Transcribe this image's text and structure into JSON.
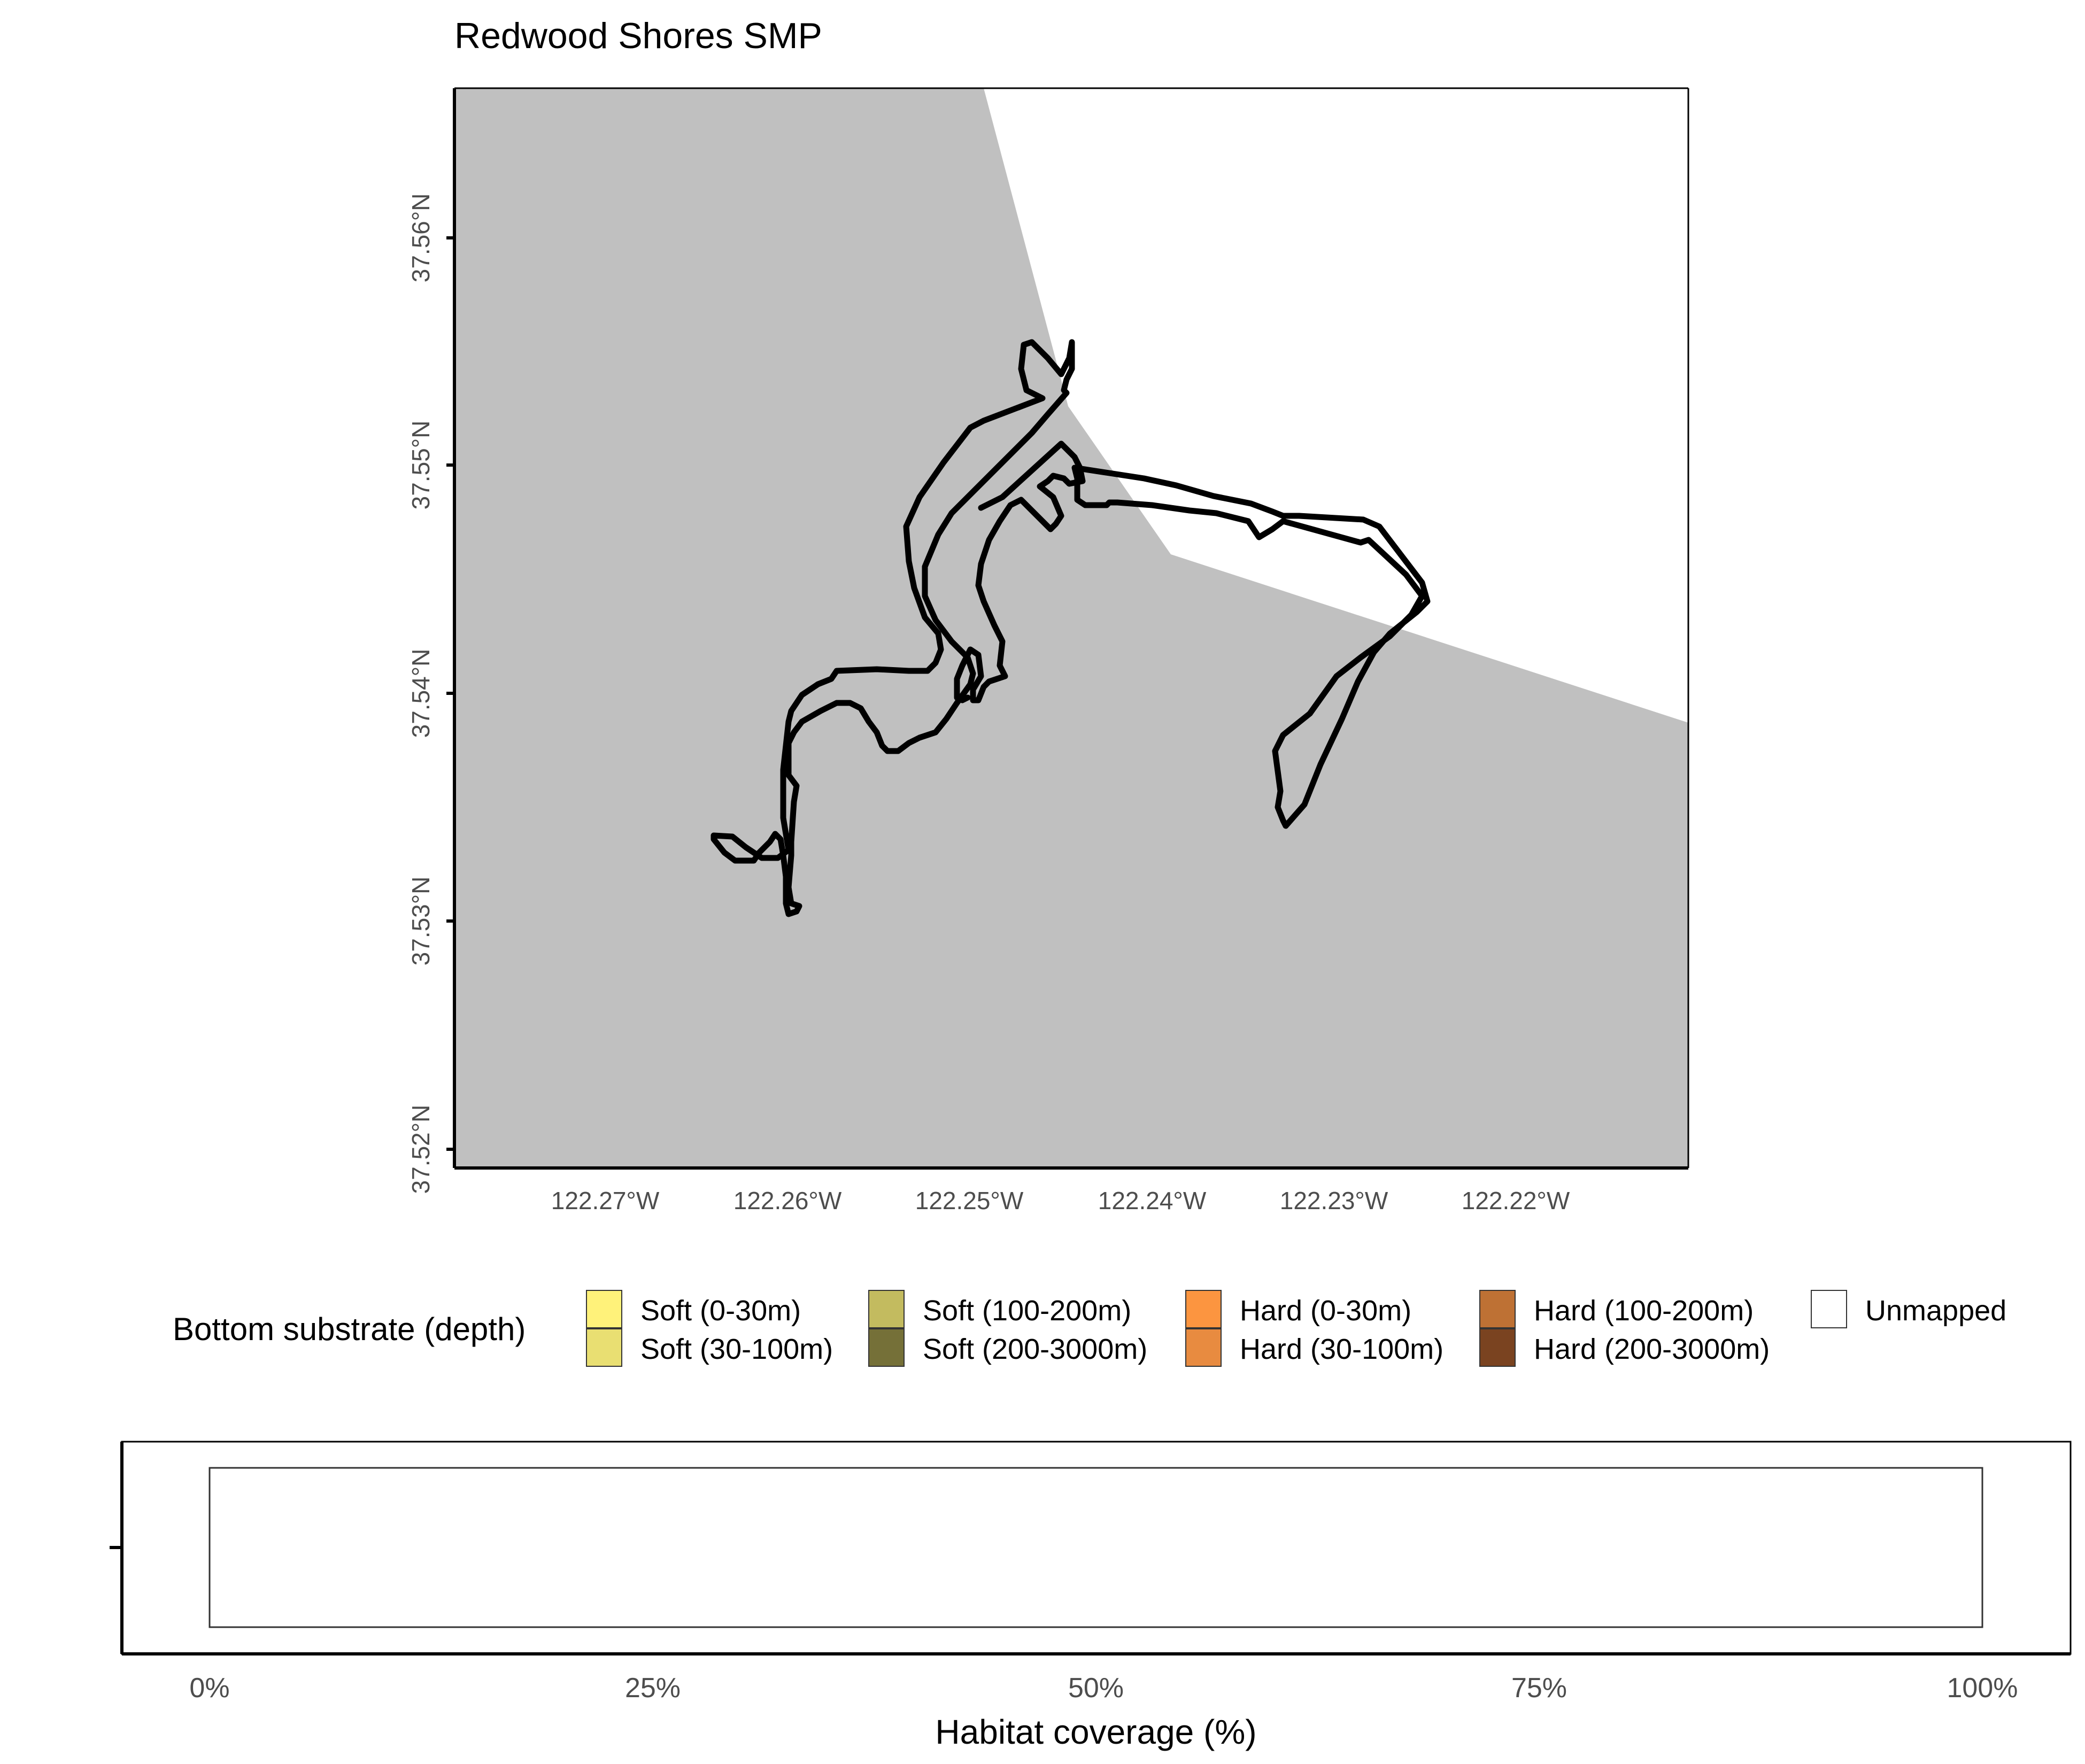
{
  "map": {
    "title": "Redwood Shores SMP",
    "land_color": "#c0c0c0",
    "water_color": "#ffffff",
    "boundary_color": "#000000",
    "x_ticks": [
      "122.27°W",
      "122.26°W",
      "122.25°W",
      "122.24°W",
      "122.23°W",
      "122.22°W"
    ],
    "y_ticks": [
      "37.56°N",
      "37.55°N",
      "37.54°N",
      "37.53°N",
      "37.52°N"
    ]
  },
  "legend": {
    "title": "Bottom substrate (depth)",
    "items": [
      {
        "label": "Soft (0-30m)",
        "color": "#fff27a"
      },
      {
        "label": "Soft (30-100m)",
        "color": "#e9df72"
      },
      {
        "label": "Soft (100-200m)",
        "color": "#c3bb5f"
      },
      {
        "label": "Soft (200-3000m)",
        "color": "#757038"
      },
      {
        "label": "Hard (0-30m)",
        "color": "#fc9540"
      },
      {
        "label": "Hard (30-100m)",
        "color": "#e88b40"
      },
      {
        "label": "Hard (100-200m)",
        "color": "#be7134"
      },
      {
        "label": "Hard (200-3000m)",
        "color": "#7a4320"
      },
      {
        "label": "Unmapped",
        "color": "#ffffff"
      }
    ]
  },
  "chart_data": {
    "type": "bar",
    "orientation": "horizontal",
    "categories": [
      ""
    ],
    "series": [
      {
        "name": "Unmapped",
        "values": [
          100
        ]
      }
    ],
    "xlabel": "Habitat coverage (%)",
    "x_ticks": [
      "0%",
      "25%",
      "50%",
      "75%",
      "100%"
    ],
    "xlim": [
      0,
      100
    ]
  }
}
